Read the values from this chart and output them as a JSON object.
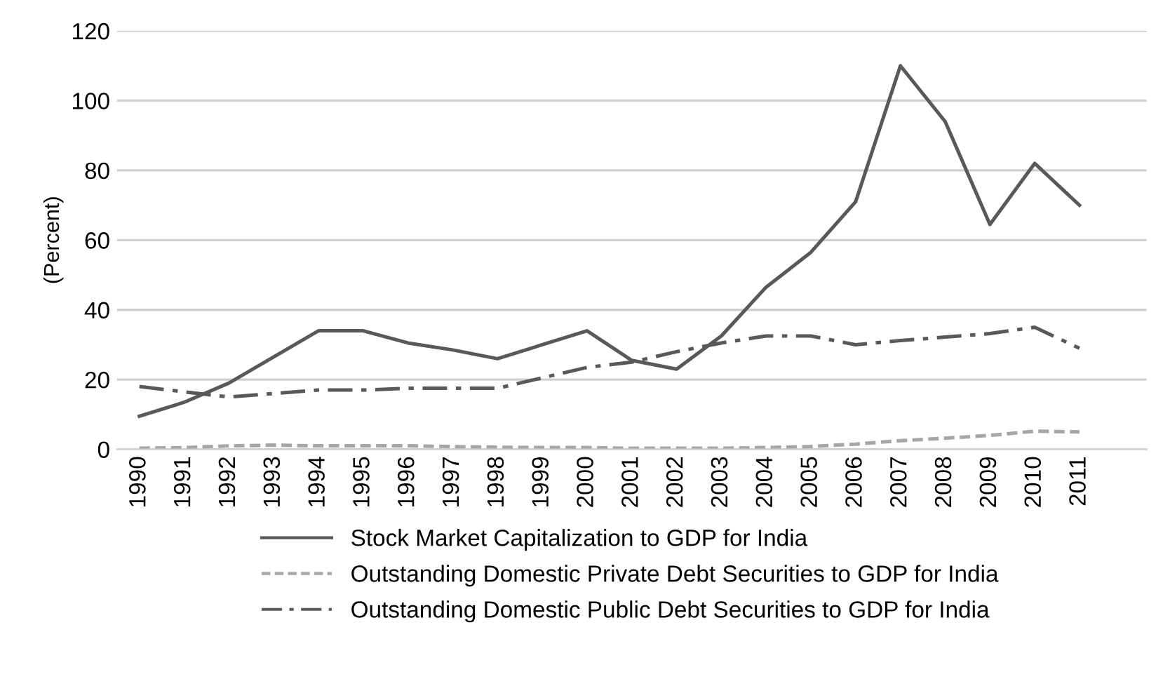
{
  "chart_data": {
    "type": "line",
    "ylabel": "(Percent)",
    "categories": [
      "1990",
      "1991",
      "1992",
      "1993",
      "1994",
      "1995",
      "1996",
      "1997",
      "1998",
      "1999",
      "2000",
      "2001",
      "2002",
      "2003",
      "2004",
      "2005",
      "2006",
      "2007",
      "2008",
      "2009",
      "2010",
      "2011",
      null
    ],
    "series": [
      {
        "name": "Stock Market Capitalization to GDP for India",
        "color": "#595959",
        "line_style": "solid",
        "values": [
          9.5,
          13.5,
          19,
          26.5,
          34,
          34,
          30.5,
          28.5,
          26,
          30,
          34,
          25.5,
          23,
          32.5,
          46.5,
          56.5,
          71,
          110,
          94,
          64.5,
          82,
          70,
          null
        ]
      },
      {
        "name": "Outstanding Domestic Private Debt Securities to GDP for India",
        "color": "#a6a6a6",
        "line_style": "dashed",
        "values": [
          0.3,
          0.5,
          1,
          1.2,
          1,
          1,
          1,
          0.8,
          0.6,
          0.5,
          0.5,
          0.3,
          0.3,
          0.3,
          0.5,
          0.8,
          1.5,
          2.5,
          3.2,
          4,
          5.2,
          5,
          null
        ]
      },
      {
        "name": "Outstanding Domestic Public Debt Securities to GDP for India",
        "color": "#595959",
        "line_style": "dashdot",
        "values": [
          18,
          16.5,
          15,
          16,
          17,
          17,
          17.5,
          17.5,
          17.5,
          20.5,
          23.5,
          25,
          28,
          30.5,
          32.5,
          32.5,
          30,
          31.2,
          32.2,
          33.2,
          35,
          29,
          null
        ]
      }
    ],
    "ylim": [
      0,
      120
    ],
    "yticks": [
      0,
      20,
      40,
      60,
      80,
      100,
      120
    ],
    "grid": "y",
    "legend": "bottom",
    "marker": "none"
  }
}
